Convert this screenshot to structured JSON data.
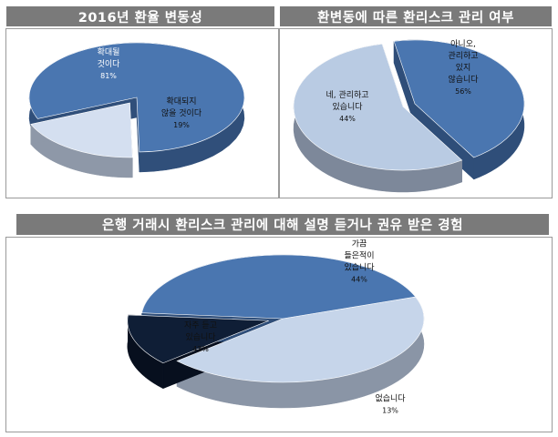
{
  "chart_data": [
    {
      "type": "pie",
      "title": "2016년 환율 변동성",
      "slices": [
        {
          "label": [
            "확대될",
            "것이다"
          ],
          "value": 81,
          "value_label": "81%",
          "color": "#4a76b0",
          "side": "#304f7a",
          "exploded": false
        },
        {
          "label": [
            "확대되지",
            "않을 것이다"
          ],
          "value": 19,
          "value_label": "19%",
          "color": "#d4dff0",
          "side": "#8e98a8",
          "exploded": true
        }
      ]
    },
    {
      "type": "pie",
      "title": "환변동에 따른 환리스크 관리 여부",
      "slices": [
        {
          "label": [
            "네, 관리하고",
            "있습니다"
          ],
          "value": 44,
          "value_label": "44%",
          "color": "#4a76b0",
          "side": "#2f4e79",
          "exploded": false
        },
        {
          "label": [
            "아니오,",
            "관리하고",
            "있지",
            "않습니다"
          ],
          "value": 56,
          "value_label": "56%",
          "color": "#b9cbe3",
          "side": "#7d889a",
          "exploded": true
        }
      ]
    },
    {
      "type": "pie",
      "title": "은행 거래시 환리스크 관리에 대해 설명 듣거나 권유 받은 경험",
      "slices": [
        {
          "label": [
            "가끔",
            "들은적이",
            "있습니다"
          ],
          "value": 44,
          "value_label": "44%",
          "color": "#c6d5ea",
          "side": "#8a95a6",
          "exploded": false
        },
        {
          "label": [
            "없습니다"
          ],
          "value": 13,
          "value_label": "13%",
          "color": "#0f1e36",
          "side": "#070f1e",
          "exploded": true
        },
        {
          "label": [
            "자주 듣고",
            "있습니다"
          ],
          "value": 43,
          "value_label": "43%",
          "color": "#4a76b0",
          "side": "#2f4e79",
          "exploded": false
        }
      ]
    }
  ]
}
